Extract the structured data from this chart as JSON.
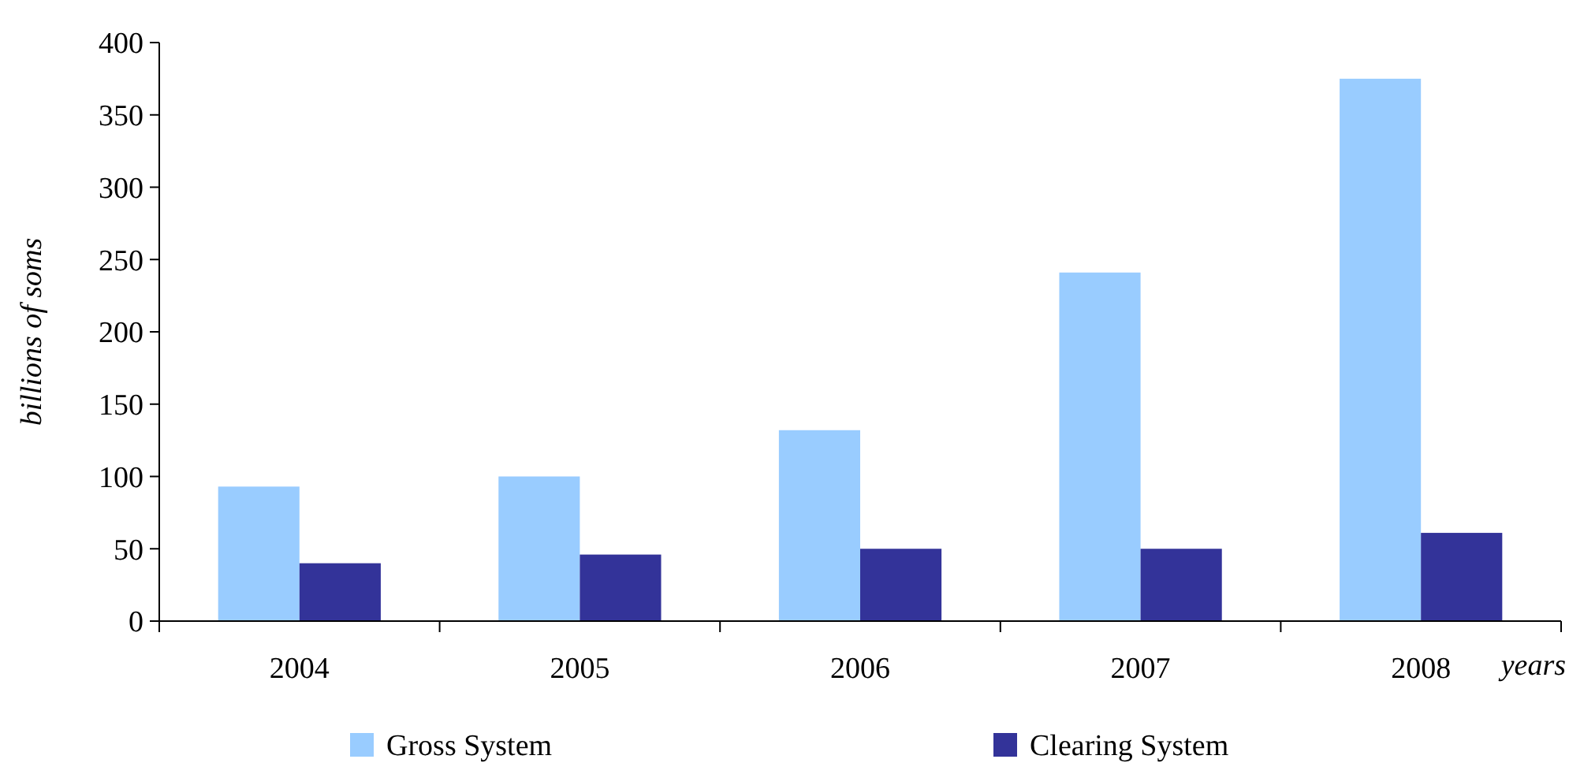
{
  "chart_data": {
    "type": "bar",
    "xlabel": "years",
    "ylabel": "billions of soms",
    "categories": [
      "2004",
      "2005",
      "2006",
      "2007",
      "2008"
    ],
    "series": [
      {
        "name": "Gross System",
        "color": "#99ccff",
        "values": [
          93,
          100,
          132,
          241,
          375
        ]
      },
      {
        "name": "Clearing System",
        "color": "#333399",
        "values": [
          40,
          46,
          50,
          50,
          61
        ]
      }
    ],
    "ylim": [
      0,
      400
    ],
    "yticks": [
      0,
      50,
      100,
      150,
      200,
      250,
      300,
      350,
      400
    ],
    "grid": false,
    "legend": "bottom"
  }
}
